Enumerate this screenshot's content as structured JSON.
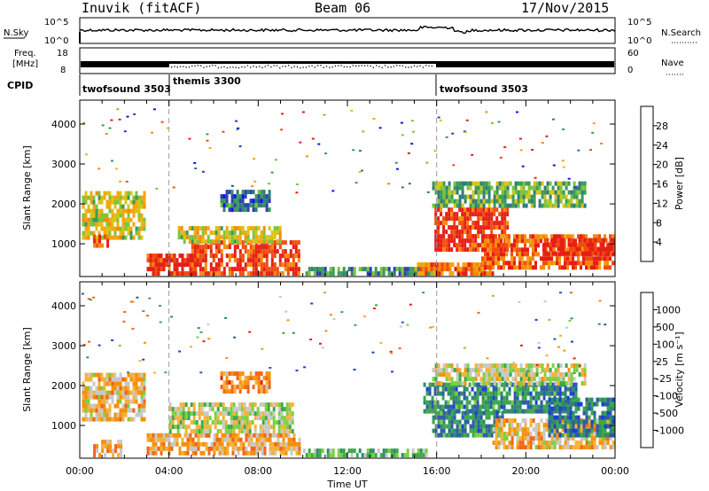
{
  "header": {
    "station": "Inuvik (fitACF)",
    "beam": "Beam 06",
    "date": "17/Nov/2015"
  },
  "top_panel": {
    "left_label": "N.Sky",
    "right_label": "N.Search",
    "left_ticks": [
      "10^5",
      "10^0"
    ],
    "right_ticks": [
      "10^5",
      "10^0"
    ]
  },
  "freq_panel": {
    "left_label_line1": "Freq.",
    "left_label_line2": "[MHz]",
    "right_label": "Nave",
    "left_ticks": [
      "18",
      "8"
    ],
    "right_ticks": [
      "60",
      "0"
    ]
  },
  "cpid": {
    "label": "CPID",
    "segments": [
      {
        "name": "twofsound 3503",
        "start": 0,
        "end": 4
      },
      {
        "name": "themis 3300",
        "start": 4,
        "end": 16
      },
      {
        "name": "twofsound 3503",
        "start": 16,
        "end": 24
      }
    ]
  },
  "chart_data": [
    {
      "type": "heatmap",
      "quantity": "Power",
      "ylabel": "Slant Range [km]",
      "ylim": [
        180,
        4600
      ],
      "y_ticks": [
        "1000",
        "2000",
        "3000",
        "4000"
      ],
      "x_range_hours": [
        0,
        24
      ],
      "colorbar_label": "Power [dB]",
      "colorbar_ticks": [
        "4",
        "8",
        "12",
        "16",
        "20",
        "24",
        "28"
      ],
      "colorbar_colors": [
        "#0a14e6",
        "#2c3fb0",
        "#2f7a7a",
        "#3a9a55",
        "#7ac43a",
        "#d8c414",
        "#f5a40f",
        "#f58a0a",
        "#f04d0f",
        "#e61e14"
      ],
      "regions": [
        {
          "t0": 0.1,
          "t1": 2.9,
          "r0": 1100,
          "r1": 2300,
          "level": 0.55
        },
        {
          "t0": 0.6,
          "t1": 1.2,
          "r0": 900,
          "r1": 1200,
          "level": 0.9
        },
        {
          "t0": 3.0,
          "t1": 5.2,
          "r0": 200,
          "r1": 700,
          "level": 0.95
        },
        {
          "t0": 5.0,
          "t1": 9.8,
          "r0": 200,
          "r1": 1000,
          "level": 0.9
        },
        {
          "t0": 4.4,
          "t1": 9.0,
          "r0": 1000,
          "r1": 1400,
          "level": 0.55
        },
        {
          "t0": 6.3,
          "t1": 8.5,
          "r0": 1800,
          "r1": 2300,
          "level": 0.25
        },
        {
          "t0": 10.0,
          "t1": 15.8,
          "r0": 200,
          "r1": 380,
          "level": 0.3
        },
        {
          "t0": 15.0,
          "t1": 18.5,
          "r0": 200,
          "r1": 500,
          "level": 0.8
        },
        {
          "t0": 15.9,
          "t1": 19.2,
          "r0": 800,
          "r1": 1900,
          "level": 0.92
        },
        {
          "t0": 15.8,
          "t1": 22.6,
          "r0": 1900,
          "r1": 2500,
          "level": 0.4
        },
        {
          "t0": 18.0,
          "t1": 24.0,
          "r0": 350,
          "r1": 1200,
          "level": 0.85
        },
        {
          "t0": 20.8,
          "t1": 24.0,
          "r0": 700,
          "r1": 1100,
          "level": 0.98
        }
      ]
    },
    {
      "type": "heatmap",
      "quantity": "Velocity",
      "ylabel": "Slant Range [km]",
      "ylim": [
        180,
        4600
      ],
      "y_ticks": [
        "1000",
        "2000",
        "3000",
        "4000"
      ],
      "x_range_hours": [
        0,
        24
      ],
      "colorbar_label": "Velocity [m s⁻¹]",
      "colorbar_ticks": [
        "1000",
        "500",
        "100",
        "25",
        "-25",
        "-100",
        "-500",
        "-1000"
      ],
      "colorbar_colors": [
        "#1a3fd0",
        "#2c5aa8",
        "#2f8a6a",
        "#3aa848",
        "#7ad040",
        "#c8c8c8",
        "#f5b03a",
        "#f5900a",
        "#f0641a",
        "#e61e14"
      ],
      "regions": [
        {
          "t0": 0.1,
          "t1": 2.9,
          "r0": 1100,
          "r1": 2300,
          "level": 0.35
        },
        {
          "t0": 0.6,
          "t1": 1.8,
          "r0": 200,
          "r1": 600,
          "level": 0.3
        },
        {
          "t0": 3.0,
          "t1": 9.8,
          "r0": 250,
          "r1": 800,
          "level": 0.3
        },
        {
          "t0": 4.0,
          "t1": 9.5,
          "r0": 800,
          "r1": 1500,
          "level": 0.48
        },
        {
          "t0": 6.3,
          "t1": 8.5,
          "r0": 1800,
          "r1": 2300,
          "level": 0.25
        },
        {
          "t0": 10.0,
          "t1": 15.5,
          "r0": 200,
          "r1": 400,
          "level": 0.62
        },
        {
          "t0": 15.4,
          "t1": 22.2,
          "r0": 1300,
          "r1": 2000,
          "level": 0.75
        },
        {
          "t0": 15.8,
          "t1": 19.0,
          "r0": 700,
          "r1": 1300,
          "level": 0.75
        },
        {
          "t0": 15.8,
          "t1": 22.6,
          "r0": 2000,
          "r1": 2500,
          "level": 0.45
        },
        {
          "t0": 18.5,
          "t1": 24.0,
          "r0": 400,
          "r1": 1100,
          "level": 0.35
        },
        {
          "t0": 21.0,
          "t1": 24.0,
          "r0": 700,
          "r1": 1600,
          "level": 0.78
        }
      ]
    }
  ],
  "x_axis": {
    "tick_labels": [
      "00:00",
      "04:00",
      "08:00",
      "12:00",
      "16:00",
      "20:00",
      "00:00"
    ],
    "label": "Time UT"
  },
  "markers_hours": [
    4,
    16
  ]
}
